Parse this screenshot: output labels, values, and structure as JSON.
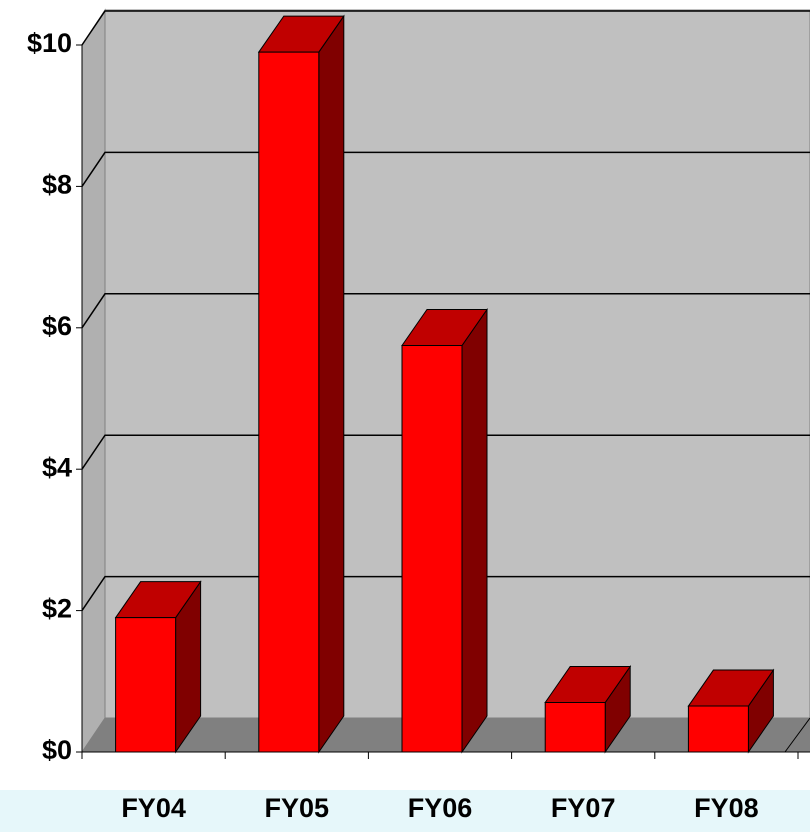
{
  "chart_data": {
    "type": "bar3d",
    "categories": [
      "FY04",
      "FY05",
      "FY06",
      "FY07",
      "FY08"
    ],
    "values": [
      1.9,
      9.9,
      5.75,
      0.7,
      0.65
    ],
    "color": "#ff0000",
    "ylim": [
      0,
      10
    ],
    "yticks": [
      {
        "value": 0,
        "label": "$0"
      },
      {
        "value": 2,
        "label": "$2"
      },
      {
        "value": 4,
        "label": "$4"
      },
      {
        "value": 6,
        "label": "$6"
      },
      {
        "value": 8,
        "label": "$8"
      },
      {
        "value": 10,
        "label": "$10"
      }
    ],
    "grid": true
  }
}
